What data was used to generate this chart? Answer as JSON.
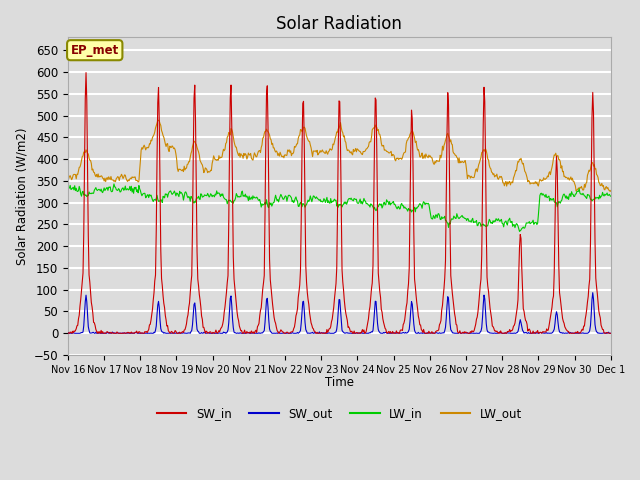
{
  "title": "Solar Radiation",
  "ylabel": "Solar Radiation (W/m2)",
  "xlabel": "Time",
  "ylim": [
    -50,
    680
  ],
  "yticks": [
    -50,
    0,
    50,
    100,
    150,
    200,
    250,
    300,
    350,
    400,
    450,
    500,
    550,
    600,
    650
  ],
  "plot_bg_color": "#dcdcdc",
  "grid_color": "white",
  "annotation_text": "EP_met",
  "annotation_bg": "#ffffaa",
  "annotation_border": "#888800",
  "start_day": 16,
  "n_days": 15,
  "colors": {
    "SW_in": "#cc0000",
    "SW_out": "#0000cc",
    "LW_in": "#00cc00",
    "LW_out": "#cc8800"
  },
  "line_width": 0.8
}
